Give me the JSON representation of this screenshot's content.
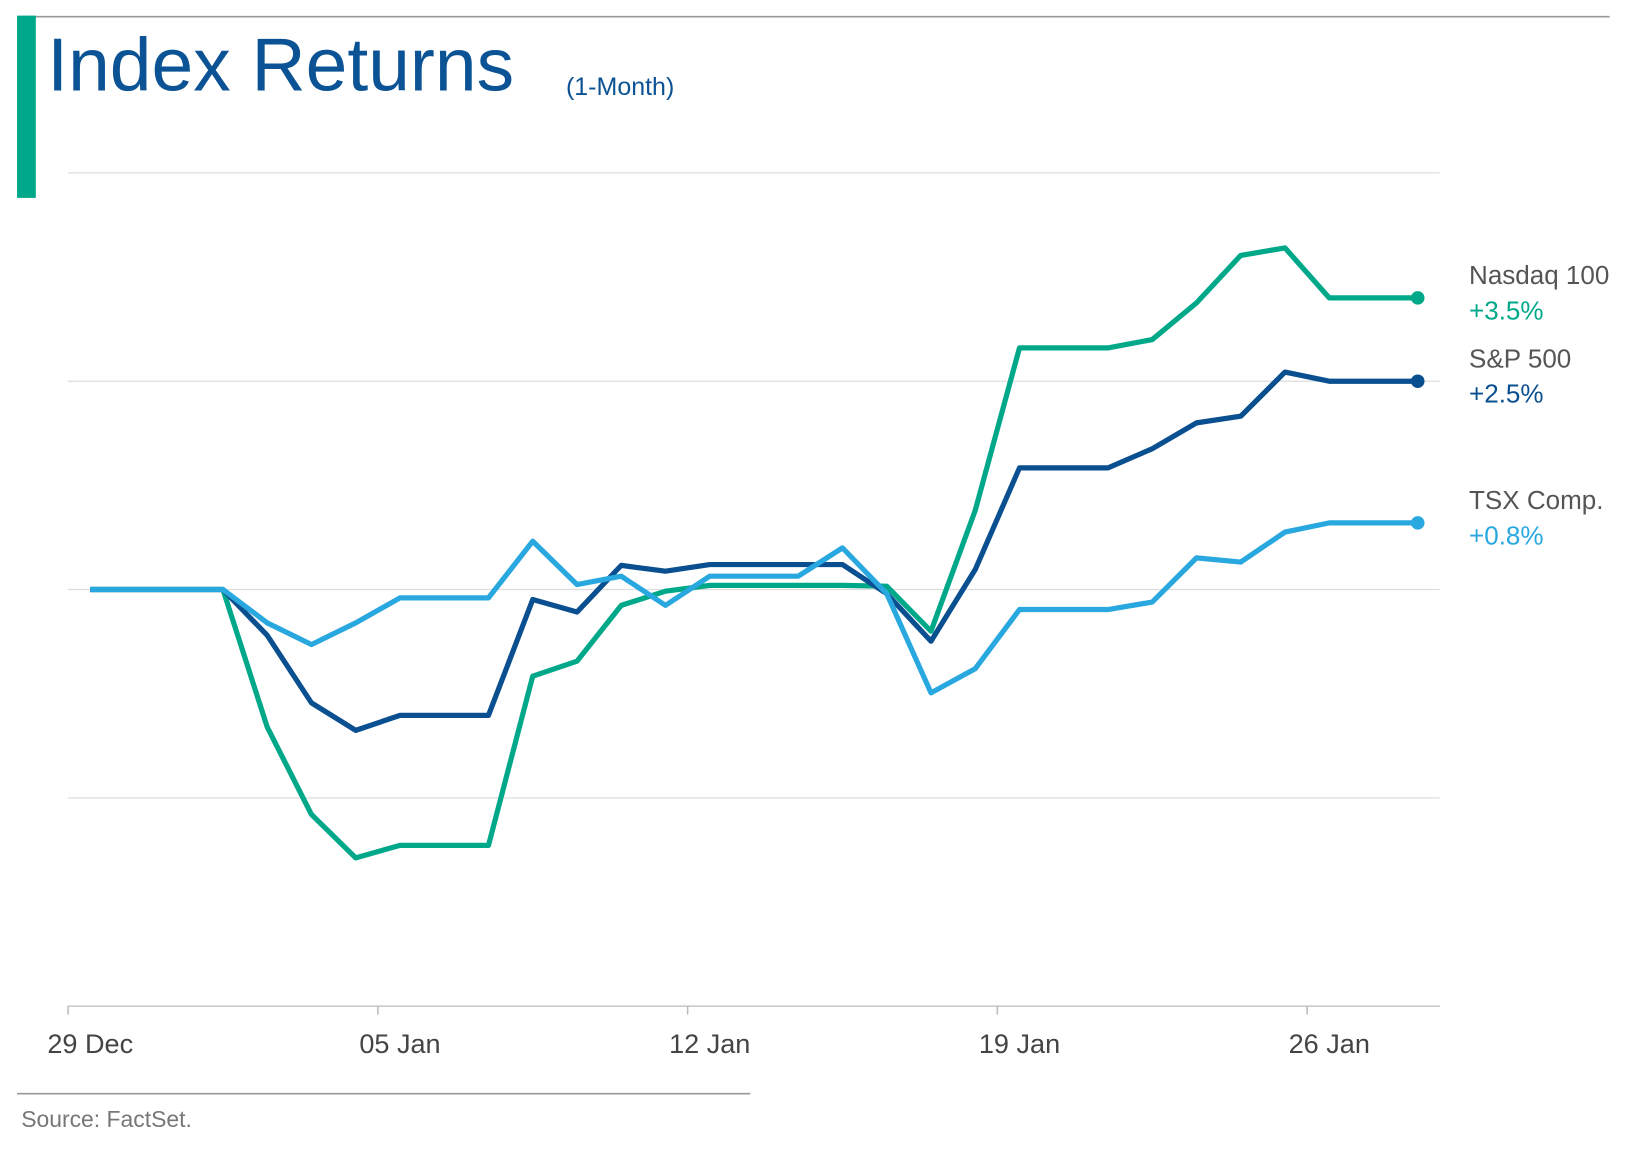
{
  "chart_data": {
    "type": "line",
    "title": "Index Returns",
    "subtitle": "(1-Month)",
    "source": "Source: FactSet.",
    "categories": [
      "29 Dec",
      null,
      null,
      null,
      null,
      null,
      null,
      "05 Jan",
      null,
      null,
      null,
      null,
      null,
      null,
      "12 Jan",
      null,
      null,
      null,
      null,
      null,
      null,
      "19 Jan",
      null,
      null,
      null,
      null,
      null,
      null,
      "26 Jan",
      null,
      null
    ],
    "ylim": [
      -5,
      5
    ],
    "yticks": [
      -5,
      -2.5,
      0,
      2.5,
      5
    ],
    "grid": true,
    "series": [
      {
        "name": "Nasdaq 100",
        "color": "#00a88a",
        "values": [
          0,
          0,
          0,
          0,
          -1.65,
          -2.7,
          -3.22,
          -3.07,
          -3.07,
          -3.07,
          -1.04,
          -0.86,
          -0.19,
          -0.02,
          0.05,
          0.05,
          0.05,
          0.05,
          0.04,
          -0.5,
          0.95,
          2.9,
          2.9,
          2.9,
          3.0,
          3.44,
          4.01,
          4.1,
          3.5,
          3.5,
          3.5
        ],
        "value_labels": [
          null,
          null,
          null,
          null,
          null,
          null,
          null,
          null,
          null,
          null,
          null,
          null,
          null,
          null,
          null,
          null,
          null,
          null,
          null,
          null,
          null,
          null,
          null,
          null,
          null,
          null,
          null,
          null,
          null,
          null,
          "+3.5%"
        ]
      },
      {
        "name": "S&P 500",
        "color": "#0a4f8f",
        "values": [
          0,
          0,
          0,
          0,
          -0.55,
          -1.36,
          -1.69,
          -1.51,
          -1.51,
          -1.51,
          -0.12,
          -0.27,
          0.29,
          0.22,
          0.3,
          0.3,
          0.3,
          0.3,
          -0.05,
          -0.62,
          0.24,
          1.46,
          1.46,
          1.46,
          1.69,
          2.0,
          2.08,
          2.61,
          2.5,
          2.5,
          2.5
        ],
        "value_labels": [
          null,
          null,
          null,
          null,
          null,
          null,
          null,
          null,
          null,
          null,
          null,
          null,
          null,
          null,
          null,
          null,
          null,
          null,
          null,
          null,
          null,
          null,
          null,
          null,
          null,
          null,
          null,
          null,
          null,
          null,
          "+2.5%"
        ]
      },
      {
        "name": "TSX Comp.",
        "color": "#29a8e0",
        "values": [
          0,
          0,
          0,
          0,
          -0.4,
          -0.66,
          -0.4,
          -0.1,
          -0.1,
          -0.1,
          0.58,
          0.06,
          0.16,
          -0.19,
          0.16,
          0.16,
          0.16,
          0.5,
          -0.05,
          -1.24,
          -0.95,
          -0.24,
          -0.24,
          -0.24,
          -0.15,
          0.38,
          0.33,
          0.69,
          0.8,
          0.8,
          0.8
        ],
        "value_labels": [
          null,
          null,
          null,
          null,
          null,
          null,
          null,
          null,
          null,
          null,
          null,
          null,
          null,
          null,
          null,
          null,
          null,
          null,
          null,
          null,
          null,
          null,
          null,
          null,
          null,
          null,
          null,
          null,
          null,
          null,
          "+0.8%"
        ]
      }
    ]
  }
}
